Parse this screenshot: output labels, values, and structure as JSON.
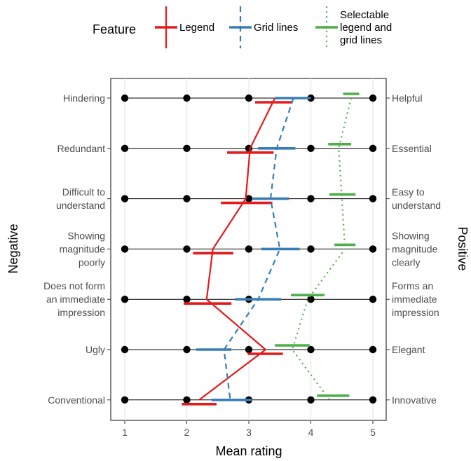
{
  "chart_data": {
    "type": "line",
    "xlabel": "Mean rating",
    "ylabel_left": "Negative",
    "ylabel_right": "Positive",
    "xlim": [
      0.9,
      5.1
    ],
    "x_ticks": [
      1,
      2,
      3,
      4,
      5
    ],
    "x_tick_labels": [
      "1",
      "2",
      "3",
      "4",
      "5"
    ],
    "grid": "vertical",
    "legend": {
      "position": "top",
      "title": "Feature",
      "entries": [
        {
          "label_lines": [
            "Legend"
          ],
          "color": "#e41a1c",
          "style": "solid"
        },
        {
          "label_lines": [
            "Grid lines"
          ],
          "color": "#377eb8",
          "style": "dashed"
        },
        {
          "label_lines": [
            "Selectable",
            "legend and",
            "grid lines"
          ],
          "color": "#4daf4a",
          "style": "dotted"
        }
      ]
    },
    "rows": [
      {
        "negative": [
          "Hindering"
        ],
        "positive": [
          "Helpful"
        ]
      },
      {
        "negative": [
          "Redundant"
        ],
        "positive": [
          "Essential"
        ]
      },
      {
        "negative": [
          "Difficult to",
          "understand"
        ],
        "positive": [
          "Easy to",
          "understand"
        ]
      },
      {
        "negative": [
          "Showing",
          "magnitude",
          "poorly"
        ],
        "positive": [
          "Showing",
          "magnitude",
          "clearly"
        ]
      },
      {
        "negative": [
          "Does not form",
          "an immediate",
          "impression"
        ],
        "positive": [
          "Forms an",
          "immediate",
          "impression"
        ]
      },
      {
        "negative": [
          "Ugly"
        ],
        "positive": [
          "Elegant"
        ]
      },
      {
        "negative": [
          "Conventional"
        ],
        "positive": [
          "Innovative"
        ]
      }
    ],
    "scale_points": [
      1,
      2,
      3,
      4,
      5
    ],
    "series": [
      {
        "name": "Legend",
        "color": "#e41a1c",
        "style": "solid",
        "means": [
          3.42,
          3.02,
          2.95,
          2.42,
          2.32,
          3.27,
          2.2
        ],
        "ci": [
          [
            3.1,
            3.7
          ],
          [
            2.65,
            3.4
          ],
          [
            2.55,
            3.38
          ],
          [
            2.1,
            2.75
          ],
          [
            1.95,
            2.72
          ],
          [
            2.98,
            3.55
          ],
          [
            1.92,
            2.48
          ]
        ]
      },
      {
        "name": "Grid lines",
        "color": "#377eb8",
        "style": "dashed",
        "means": [
          3.72,
          3.45,
          3.35,
          3.5,
          3.15,
          2.6,
          2.7
        ],
        "ci": [
          [
            3.42,
            4.0
          ],
          [
            3.15,
            3.75
          ],
          [
            3.05,
            3.65
          ],
          [
            3.2,
            3.82
          ],
          [
            2.78,
            3.52
          ],
          [
            2.15,
            2.72
          ],
          [
            2.4,
            3.05
          ]
        ]
      },
      {
        "name": "Selectable legend and grid lines",
        "color": "#4daf4a",
        "style": "dotted",
        "means": [
          4.65,
          4.45,
          4.5,
          4.55,
          3.95,
          3.7,
          4.3
        ],
        "ci": [
          [
            4.52,
            4.78
          ],
          [
            4.28,
            4.65
          ],
          [
            4.3,
            4.72
          ],
          [
            4.38,
            4.72
          ],
          [
            3.68,
            4.22
          ],
          [
            3.42,
            3.98
          ],
          [
            4.1,
            4.62
          ]
        ]
      }
    ]
  }
}
